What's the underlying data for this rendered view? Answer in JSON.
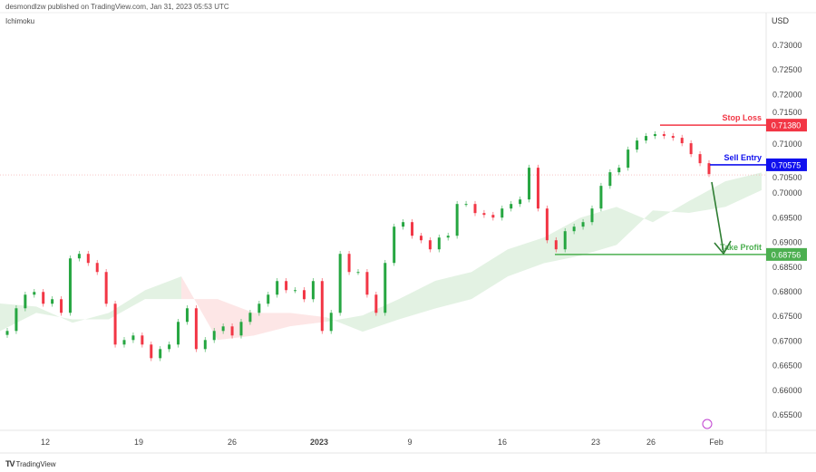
{
  "header": {
    "published": "desmondlzw published on TradingView.com, Jan 31, 2023 05:53 UTC",
    "indicator": "Ichimoku"
  },
  "footer": {
    "brand": "TradingView"
  },
  "chart_data": {
    "type": "candlestick",
    "currency": "USD",
    "y_ticks": [
      "0.73000",
      "0.72500",
      "0.72000",
      "0.71500",
      "0.71000",
      "0.70500",
      "0.70000",
      "0.69500",
      "0.69000",
      "0.68500",
      "0.68000",
      "0.67500",
      "0.67000",
      "0.66500",
      "0.66000",
      "0.65500"
    ],
    "ylim": [
      0.6525,
      0.7345
    ],
    "x_ticks": [
      {
        "label": "12",
        "bold": false
      },
      {
        "label": "19",
        "bold": false
      },
      {
        "label": "26",
        "bold": false
      },
      {
        "label": "2023",
        "bold": true
      },
      {
        "label": "9",
        "bold": false
      },
      {
        "label": "16",
        "bold": false
      },
      {
        "label": "23",
        "bold": false
      },
      {
        "label": "26",
        "bold": false
      },
      {
        "label": "Feb",
        "bold": false
      }
    ],
    "closes": [
      0.67204,
      0.67664,
      0.6794,
      0.67995,
      0.67756,
      0.67848,
      0.67572,
      0.68676,
      0.68768,
      0.68584,
      0.684,
      0.67756,
      0.66928,
      0.6702,
      0.67112,
      0.66928,
      0.66652,
      0.66836,
      0.66928,
      0.67388,
      0.67664,
      0.66836,
      0.6702,
      0.67204,
      0.67296,
      0.67112,
      0.67388,
      0.67572,
      0.67756,
      0.6794,
      0.68216,
      0.68032,
      0.68032,
      0.67848,
      0.68216,
      0.67204,
      0.67572,
      0.68768,
      0.684,
      0.684,
      0.6794,
      0.67572,
      0.68584,
      0.6932,
      0.69412,
      0.69136,
      0.69044,
      0.6886,
      0.69099,
      0.69136,
      0.6978,
      0.6978,
      0.69596,
      0.69559,
      0.69504,
      0.69688,
      0.6978,
      0.69872,
      0.70516,
      0.69688,
      0.69044,
      0.6886,
      0.69228,
      0.6932,
      0.69412,
      0.69688,
      0.70148,
      0.70424,
      0.70516,
      0.70884,
      0.71068,
      0.7116,
      0.71197,
      0.7116,
      0.71123,
      0.71013,
      0.70792,
      0.70608,
      0.70387
    ],
    "ichimoku_cloud": {
      "span_a": [
        0.6776,
        0.677,
        0.6737,
        0.6757,
        0.6803,
        0.6831,
        0.6702,
        0.6711,
        0.673,
        0.6739,
        0.6752,
        0.6785,
        0.6822,
        0.684,
        0.6886,
        0.691,
        0.695,
        0.6972,
        0.6941,
        0.6984,
        0.7024,
        0.7042
      ],
      "span_b": [
        0.672,
        0.6757,
        0.6744,
        0.6744,
        0.6785,
        0.6785,
        0.6785,
        0.6757,
        0.6757,
        0.6748,
        0.6719,
        0.6744,
        0.6766,
        0.6785,
        0.6831,
        0.6858,
        0.6873,
        0.6895,
        0.6965,
        0.696,
        0.6972,
        0.7006
      ]
    },
    "current_price_line": 0.7037,
    "levels": [
      {
        "name": "Stop Loss",
        "price": 0.7138,
        "label": "0.71380",
        "color": "#f23645"
      },
      {
        "name": "Sell Entry",
        "price": 0.70575,
        "label": "0.70575",
        "color": "#1010ee"
      },
      {
        "name": "Take Profit",
        "price": 0.68756,
        "label": "0.68756",
        "color": "#4caf50"
      }
    ],
    "colors": {
      "up": "#26a641",
      "down": "#f23645",
      "cloud_up": "#e3f2e3",
      "cloud_down": "#fde6e6",
      "arrow": "#2e7d32"
    }
  }
}
